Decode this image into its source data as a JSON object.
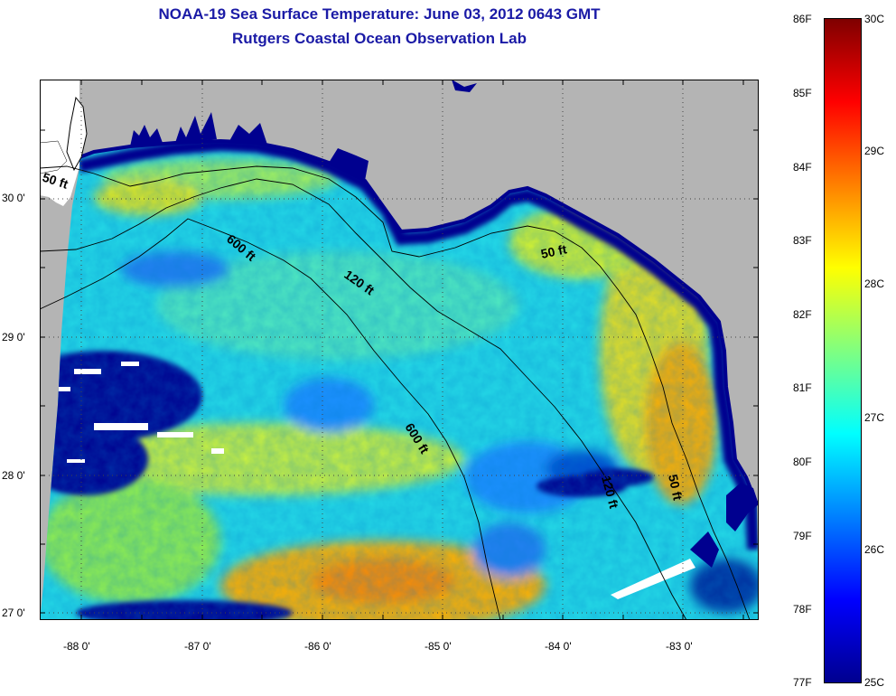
{
  "title": {
    "line1": "NOAA-19 Sea Surface Temperature:  June 03, 2012 0643 GMT",
    "line2": "Rutgers Coastal Ocean Observation Lab"
  },
  "axes": {
    "latitude_labels": [
      "30 0'",
      "29 0'",
      "28 0'",
      "27 0'"
    ],
    "longitude_labels": [
      "-88 0'",
      "-87 0'",
      "-86 0'",
      "-85 0'",
      "-84 0'",
      "-83 0'"
    ]
  },
  "contour_labels": {
    "c50_west": "50 ft",
    "c600_north": "600 ft",
    "c120_north": "120 ft",
    "c50_east": "50 ft",
    "c600_south": "600 ft",
    "c120_south": "120 ft",
    "c50_south": "50 ft"
  },
  "colorbar": {
    "fahrenheit_labels": [
      "86F",
      "85F",
      "84F",
      "83F",
      "82F",
      "81F",
      "80F",
      "79F",
      "78F",
      "77F"
    ],
    "celsius_labels": [
      "30C",
      "29C",
      "28C",
      "27C",
      "26C",
      "25C"
    ],
    "colors": [
      "#7f0000",
      "#ff0000",
      "#ff8000",
      "#ffff00",
      "#80ff80",
      "#00ffff",
      "#0080ff",
      "#0000ff",
      "#00008f"
    ]
  },
  "colors": {
    "land": "#b4b4b4",
    "title": "#1a1aa6"
  }
}
